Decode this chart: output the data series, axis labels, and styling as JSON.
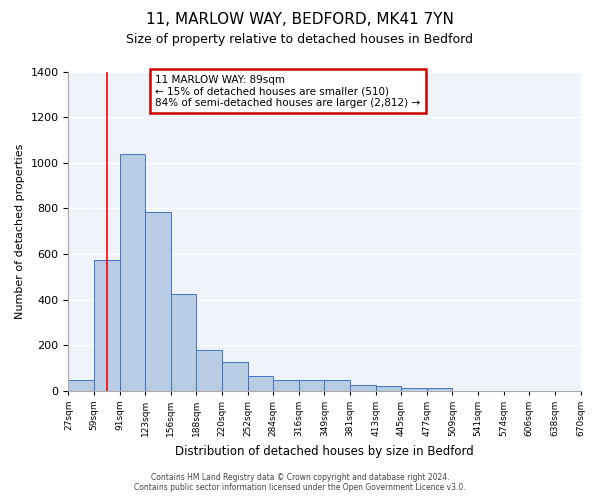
{
  "title": "11, MARLOW WAY, BEDFORD, MK41 7YN",
  "subtitle": "Size of property relative to detached houses in Bedford",
  "xlabel": "Distribution of detached houses by size in Bedford",
  "ylabel": "Number of detached properties",
  "bin_labels": [
    "27sqm",
    "59sqm",
    "91sqm",
    "123sqm",
    "156sqm",
    "188sqm",
    "220sqm",
    "252sqm",
    "284sqm",
    "316sqm",
    "349sqm",
    "381sqm",
    "413sqm",
    "445sqm",
    "477sqm",
    "509sqm",
    "541sqm",
    "574sqm",
    "606sqm",
    "638sqm",
    "670sqm"
  ],
  "bar_values": [
    48,
    575,
    1040,
    785,
    425,
    180,
    125,
    63,
    48,
    48,
    48,
    25,
    20,
    13,
    10,
    0,
    0,
    0,
    0,
    0
  ],
  "bar_color": "#b8cce4",
  "bar_edge_color": "#4472c4",
  "vline_x": 1.5,
  "vline_color": "#ff0000",
  "ylim": [
    0,
    1400
  ],
  "yticks": [
    0,
    200,
    400,
    600,
    800,
    1000,
    1200,
    1400
  ],
  "annotation_text": "11 MARLOW WAY: 89sqm\n← 15% of detached houses are smaller (510)\n84% of semi-detached houses are larger (2,812) →",
  "annotation_box_color": "#ffffff",
  "annotation_box_edge_color": "#cc0000",
  "footer_line1": "Contains HM Land Registry data © Crown copyright and database right 2024.",
  "footer_line2": "Contains public sector information licensed under the Open Government Licence v3.0.",
  "background_color": "#eef2f9",
  "grid_color": "#ffffff",
  "fig_bg_color": "#ffffff"
}
